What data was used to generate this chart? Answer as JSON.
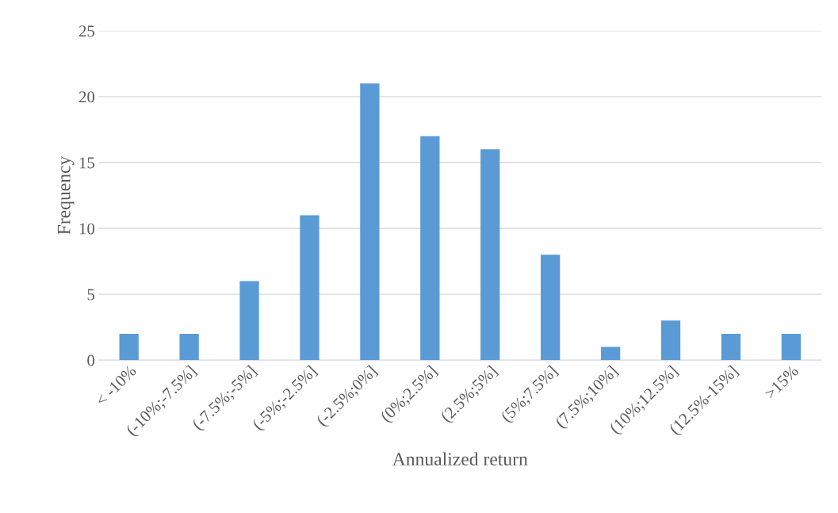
{
  "chart_data": {
    "type": "bar",
    "xlabel": "Annualized return",
    "ylabel": "Frequency",
    "categories": [
      "< -10%",
      "(-10%;-7.5%]",
      "(-7.5%;-5%]",
      "(-5%;-2.5%]",
      "(-2.5%;0%]",
      "(0%;2.5%]",
      "(2.5%;5%]",
      "(5%;7.5%]",
      "(7.5%;10%]",
      "(10%;12.5%]",
      "(12.5%-15%]",
      ">15%"
    ],
    "values": [
      2,
      2,
      6,
      11,
      21,
      17,
      16,
      8,
      1,
      3,
      2,
      2
    ],
    "color": "#5b9bd5",
    "ylim": [
      0,
      25
    ],
    "yticks": [
      0,
      5,
      10,
      15,
      20,
      25
    ],
    "grid": "y"
  }
}
